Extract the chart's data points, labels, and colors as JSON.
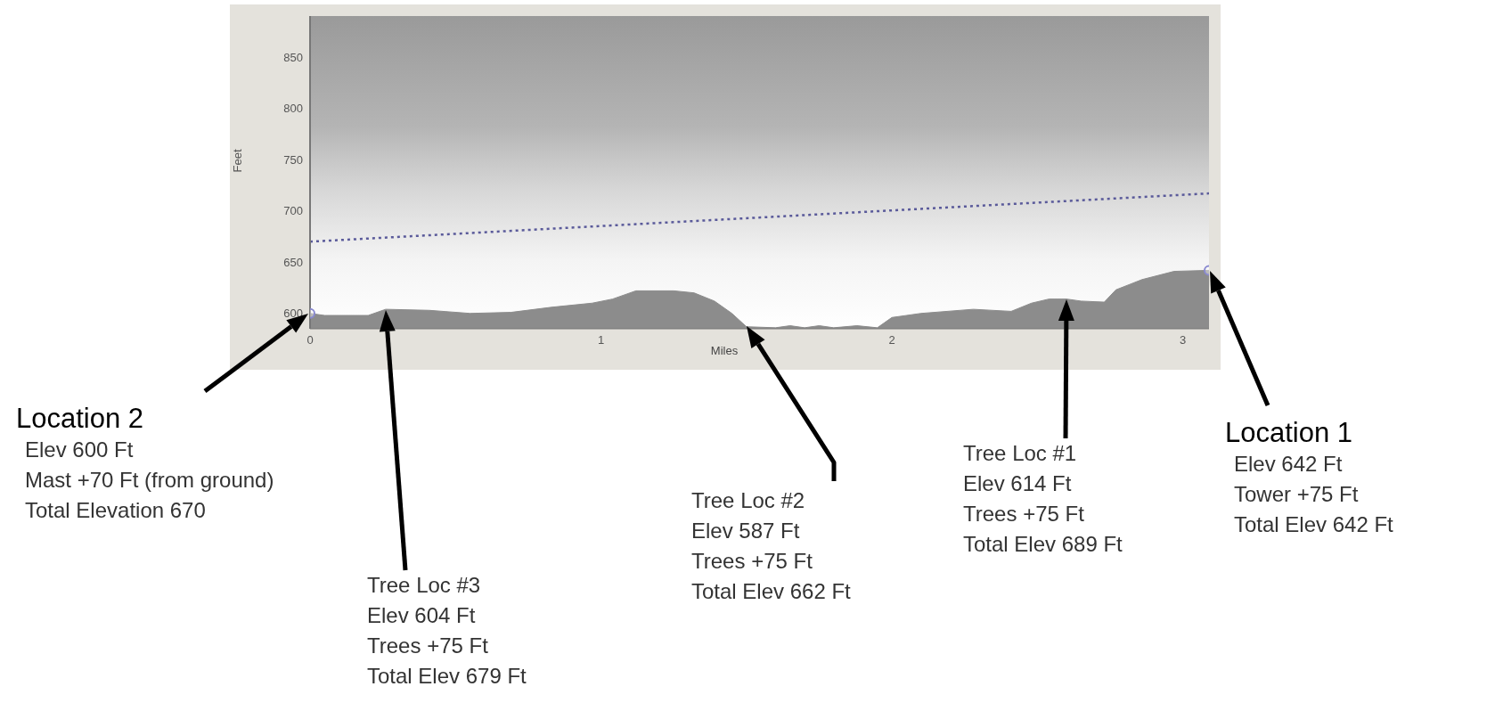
{
  "chart_data": {
    "type": "area",
    "xlabel": "Miles",
    "ylabel": "Feet",
    "xlim": [
      0,
      3.09
    ],
    "ylim": [
      585,
      890
    ],
    "xticks": [
      0,
      1,
      2,
      3
    ],
    "yticks": [
      600,
      650,
      700,
      750,
      800,
      850
    ],
    "grid": false,
    "series": [
      {
        "type": "area",
        "color": "#8c8c8c",
        "marker": "none",
        "x": [
          0,
          0.05,
          0.2,
          0.26,
          0.41,
          0.55,
          0.69,
          0.83,
          0.97,
          1.04,
          1.12,
          1.25,
          1.32,
          1.39,
          1.45,
          1.5,
          1.6,
          1.65,
          1.7,
          1.75,
          1.8,
          1.88,
          1.95,
          2.0,
          2.1,
          2.28,
          2.41,
          2.48,
          2.54,
          2.6,
          2.65,
          2.73,
          2.77,
          2.86,
          2.97,
          3.09
        ],
        "values": [
          600,
          598,
          598,
          604,
          603,
          600,
          601,
          606,
          610,
          614,
          622,
          622,
          620,
          612,
          600,
          587,
          586,
          588,
          586,
          588,
          586,
          588,
          586,
          596,
          600,
          604,
          602,
          610,
          614,
          614,
          612,
          611,
          623,
          633,
          641,
          642
        ]
      },
      {
        "type": "line",
        "color": "#5a5a9a",
        "marker": "none",
        "line_style": "dotted",
        "x": [
          0,
          3.09
        ],
        "values": [
          670,
          717
        ]
      },
      {
        "type": "scatter",
        "color": "#8a8ad0",
        "marker": "circle",
        "x": [
          0,
          3.09
        ],
        "values": [
          600,
          642
        ]
      }
    ],
    "annotations": [
      "Location 2\nElev 600 Ft\nMast +70 Ft (from ground)\nTotal Elevation 670",
      "Tree Loc #3\nElev 604 Ft\nTrees +75 Ft\nTotal Elev 679 Ft",
      "Tree Loc #2\nElev 587 Ft\nTrees +75 Ft\nTotal Elev 662 Ft",
      "Tree Loc #1\nElev 614 Ft\nTrees +75 Ft\nTotal Elev 689 Ft",
      "Location 1\nElev 642 Ft\nTower +75 Ft\nTotal Elev 642 Ft"
    ]
  }
}
